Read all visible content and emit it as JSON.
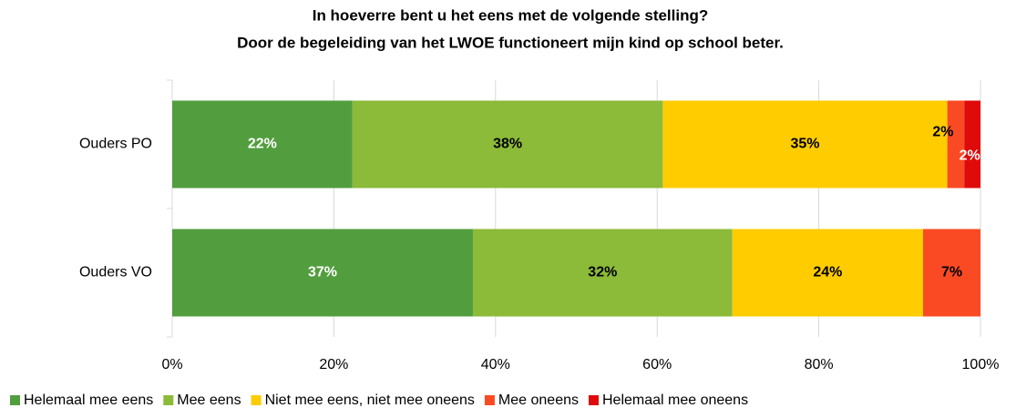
{
  "chart_data": {
    "type": "stacked_barh",
    "title": [
      "In hoeverre bent u het eens met de volgende stelling?",
      "Door de begeleiding van het LWOE functioneert mijn kind op school beter."
    ],
    "categories": [
      "Ouders PO",
      "Ouders VO"
    ],
    "series": [
      {
        "name": "Helemaal mee eens",
        "color": "#529e3e",
        "values": [
          22.3,
          37.2
        ],
        "value_labels": [
          "22%",
          "37%"
        ]
      },
      {
        "name": "Mee eens",
        "color": "#8cba39",
        "values": [
          38.4,
          32.1
        ],
        "value_labels": [
          "38%",
          "32%"
        ]
      },
      {
        "name": "Niet mee eens, niet mee oneens",
        "color": "#ffcc00",
        "values": [
          35.2,
          23.6
        ],
        "value_labels": [
          "35%",
          "24%"
        ]
      },
      {
        "name": "Mee oneens",
        "color": "#fa4a24",
        "values": [
          2.1,
          7.1
        ],
        "value_labels": [
          "2%",
          "7%"
        ]
      },
      {
        "name": "Helemaal mee oneens",
        "color": "#df0a0a",
        "values": [
          2.0,
          0
        ],
        "value_labels": [
          "2%",
          null
        ]
      }
    ],
    "xlim": [
      0,
      100
    ],
    "xticks": [
      {
        "value": 0,
        "label": "0%"
      },
      {
        "value": 20,
        "label": "20%"
      },
      {
        "value": 40,
        "label": "40%"
      },
      {
        "value": 60,
        "label": "60%"
      },
      {
        "value": 80,
        "label": "80%"
      },
      {
        "value": 100,
        "label": "100%"
      }
    ],
    "grid": true,
    "legend": "bottom"
  }
}
